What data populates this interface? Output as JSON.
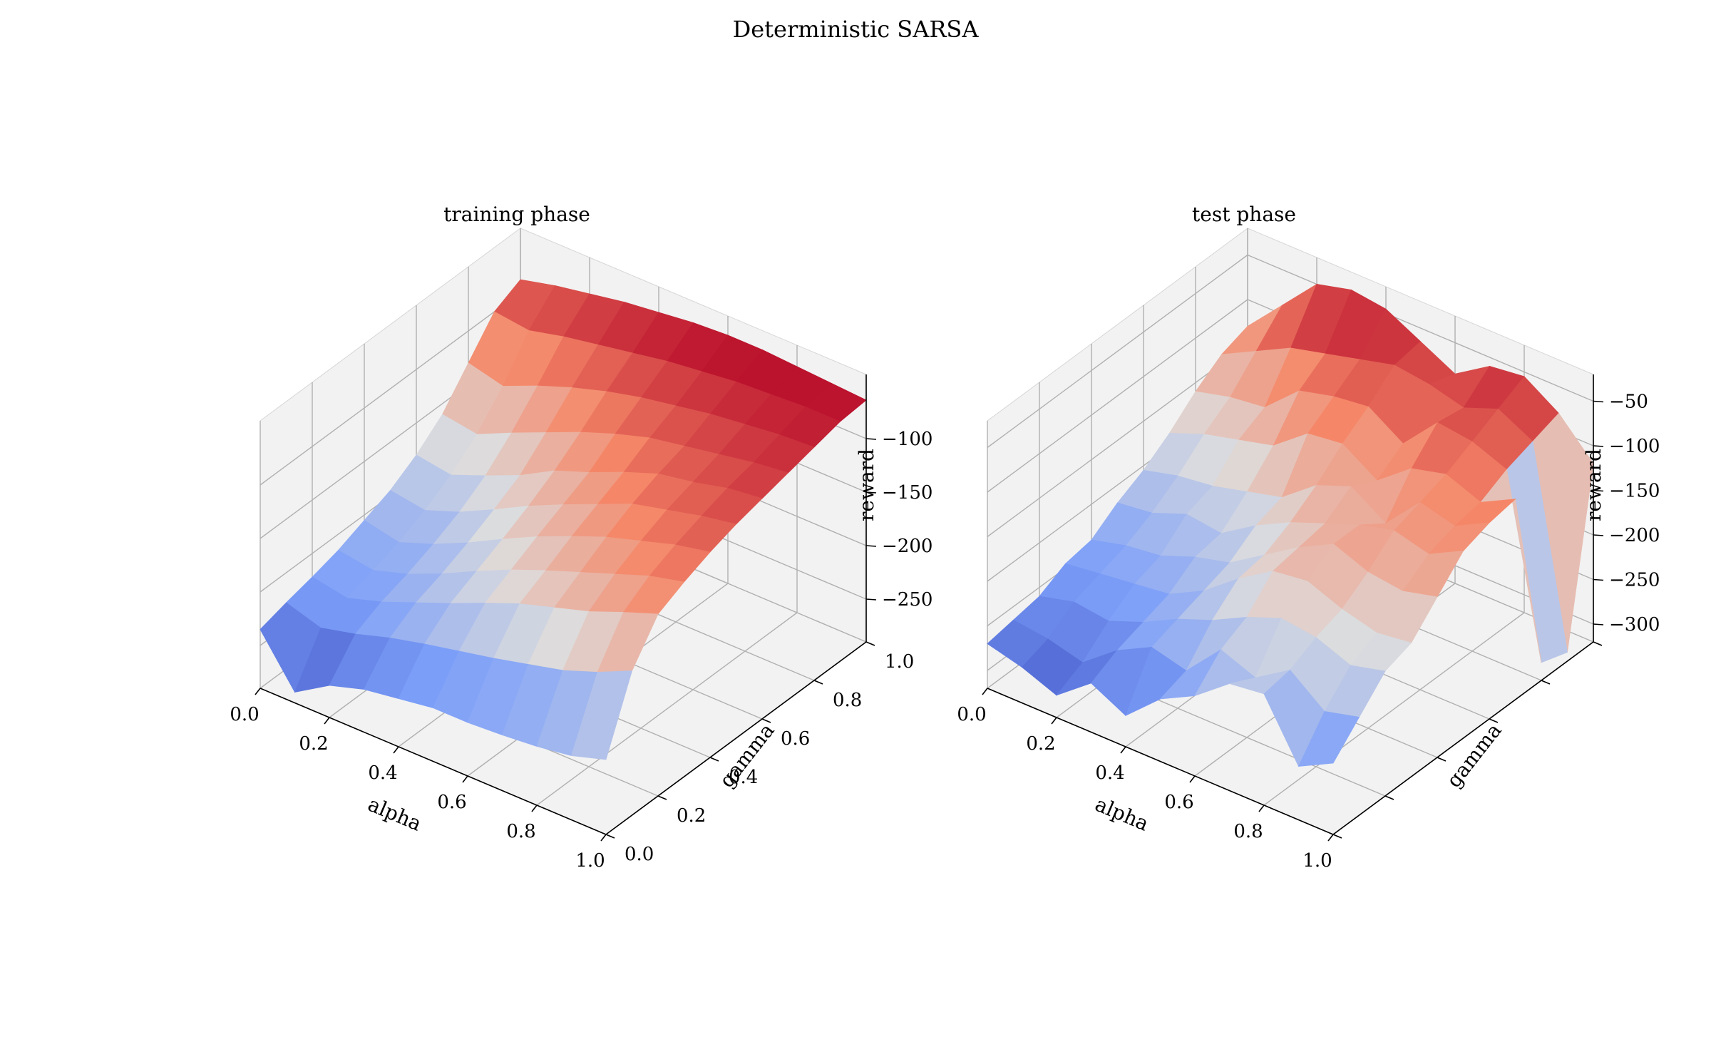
{
  "figure": {
    "title": "Deterministic SARSA"
  },
  "colors": {
    "cool": "#3b4cc0",
    "mid": "#dddddd",
    "warm": "#b40426",
    "pane": "#f2f2f2",
    "grid": "#b0b0b0"
  },
  "chart_data": [
    {
      "type": "surface",
      "title": "training phase",
      "xlabel": "alpha",
      "ylabel": "gamma",
      "zlabel": "reward",
      "xlim": [
        0,
        1
      ],
      "ylim": [
        0,
        1
      ],
      "zlim": [
        -290,
        -40
      ],
      "x_ticks": [
        0,
        0.2,
        0.4,
        0.6,
        0.8,
        1.0
      ],
      "x_tick_labels": [
        "0.0",
        "0.2",
        "0.4",
        "0.6",
        "0.8",
        "1.0"
      ],
      "y_ticks": [
        0,
        0.2,
        0.4,
        0.6,
        0.8,
        1.0
      ],
      "y_tick_labels": [
        "0.0",
        "0.2",
        "0.4",
        "0.6",
        "0.8",
        "1.0"
      ],
      "z_ticks": [
        -100,
        -150,
        -200,
        -250
      ],
      "z_tick_labels": [
        "−100",
        "−150",
        "−200",
        "−250"
      ],
      "x": [
        0.0,
        0.1,
        0.2,
        0.3,
        0.4,
        0.5,
        0.6,
        0.7,
        0.8,
        0.9,
        1.0
      ],
      "y": [
        0.0,
        0.1,
        0.2,
        0.3,
        0.4,
        0.5,
        0.6,
        0.7,
        0.8,
        0.9,
        1.0
      ],
      "colormap": "coolwarm",
      "z": [
        [
          -235,
          -280,
          -260,
          -250,
          -245,
          -240,
          -240,
          -238,
          -235,
          -230,
          -220
        ],
        [
          -228,
          -238,
          -230,
          -220,
          -212,
          -205,
          -198,
          -190,
          -182,
          -170,
          -155
        ],
        [
          -222,
          -228,
          -218,
          -205,
          -192,
          -178,
          -165,
          -155,
          -145,
          -132,
          -120
        ],
        [
          -215,
          -220,
          -210,
          -196,
          -180,
          -165,
          -152,
          -140,
          -128,
          -116,
          -108
        ],
        [
          -205,
          -212,
          -200,
          -185,
          -168,
          -152,
          -138,
          -125,
          -115,
          -105,
          -98
        ],
        [
          -195,
          -200,
          -188,
          -172,
          -155,
          -140,
          -126,
          -112,
          -104,
          -96,
          -90
        ],
        [
          -180,
          -185,
          -172,
          -158,
          -140,
          -128,
          -114,
          -102,
          -96,
          -88,
          -84
        ],
        [
          -160,
          -165,
          -150,
          -136,
          -122,
          -110,
          -100,
          -94,
          -88,
          -82,
          -78
        ],
        [
          -130,
          -138,
          -124,
          -112,
          -102,
          -94,
          -88,
          -82,
          -78,
          -74,
          -72
        ],
        [
          -100,
          -104,
          -96,
          -90,
          -84,
          -78,
          -74,
          -70,
          -68,
          -66,
          -66
        ],
        [
          -88,
          -80,
          -74,
          -68,
          -64,
          -60,
          -58,
          -58,
          -60,
          -62,
          -64
        ]
      ]
    },
    {
      "type": "surface",
      "title": "test phase",
      "xlabel": "alpha",
      "ylabel": "gamma",
      "zlabel": "reward",
      "xlim": [
        0,
        1
      ],
      "ylim": [
        0,
        1
      ],
      "zlim": [
        -320,
        -20
      ],
      "x_ticks": [
        0,
        0.2,
        0.4,
        0.6,
        0.8,
        1.0
      ],
      "x_tick_labels": [
        "0.0",
        "0.2",
        "0.4",
        "0.6",
        "0.8",
        "1.0"
      ],
      "y_ticks": [],
      "y_tick_labels": [],
      "z_ticks": [
        -50,
        -100,
        -150,
        -200,
        -250,
        -300
      ],
      "z_tick_labels": [
        "−50",
        "−100",
        "−150",
        "−200",
        "−250",
        "−300"
      ],
      "x": [
        0.0,
        0.1,
        0.2,
        0.3,
        0.4,
        0.5,
        0.6,
        0.7,
        0.8,
        0.9,
        1.0
      ],
      "y": [
        0.0,
        0.1,
        0.2,
        0.3,
        0.4,
        0.5,
        0.6,
        0.7,
        0.8,
        0.9,
        1.0
      ],
      "colormap": "coolwarm",
      "z": [
        [
          -270,
          -280,
          -295,
          -265,
          -285,
          -250,
          -230,
          -200,
          -195,
          -260,
          -240
        ],
        [
          -265,
          -270,
          -280,
          -250,
          -230,
          -240,
          -200,
          -215,
          -190,
          -220,
          -210
        ],
        [
          -260,
          -250,
          -255,
          -240,
          -220,
          -205,
          -185,
          -170,
          -175,
          -190,
          -180
        ],
        [
          -245,
          -240,
          -235,
          -230,
          -210,
          -180,
          -155,
          -150,
          -165,
          -175,
          -170
        ],
        [
          -240,
          -230,
          -225,
          -210,
          -200,
          -175,
          -150,
          -130,
          -145,
          -150,
          -140
        ],
        [
          -220,
          -215,
          -200,
          -205,
          -180,
          -160,
          -145,
          -130,
          -120,
          -130,
          -110
        ],
        [
          -205,
          -195,
          -190,
          -180,
          -170,
          -140,
          -125,
          -150,
          -110,
          -120,
          -100
        ],
        [
          -185,
          -170,
          -160,
          -150,
          -120,
          -115,
          -140,
          -110,
          -100,
          -115,
          -95
        ],
        [
          -160,
          -150,
          -145,
          -110,
          -100,
          -95,
          -120,
          -80,
          -85,
          -100,
          -300
        ],
        [
          -140,
          -120,
          -100,
          -90,
          -80,
          -70,
          -75,
          -85,
          -70,
          -90,
          -310
        ],
        [
          -130,
          -90,
          -50,
          -40,
          -45,
          -65,
          -85,
          -60,
          -55,
          -80,
          -120
        ]
      ]
    }
  ]
}
